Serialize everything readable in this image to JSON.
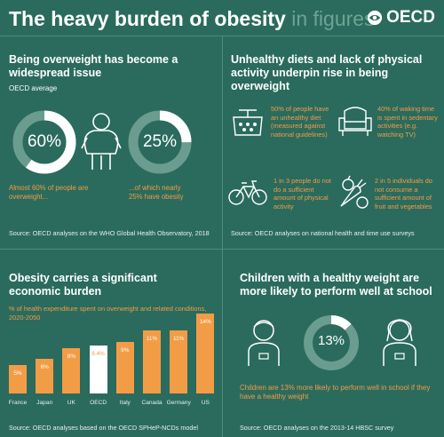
{
  "header": {
    "title_main": "The heavy burden of obesity",
    "title_muted": " in figures",
    "logo_text": "OECD"
  },
  "q1": {
    "heading": "Being overweight has become a widespread issue",
    "sub": "OECD average",
    "ring1_value": "60%",
    "ring1_fraction": 0.6,
    "ring2_value": "25%",
    "ring2_fraction": 0.25,
    "caption1": "Almost 60% of people are overweight...",
    "caption2": "...of which nearly 25% have obesity",
    "source": "Source: OECD analyses on the WHO Global Health Observatory, 2018"
  },
  "q2": {
    "heading": "Unhealthy diets and lack of physical activity underpin rise in being overweight",
    "items": [
      {
        "icon": "scale-food-icon",
        "text": "50% of people have an unhealthy diet (measured against national guidelines)"
      },
      {
        "icon": "armchair-icon",
        "text": "40% of waking time is spent in sedentary activities (e.g. watching TV)"
      },
      {
        "icon": "bicycle-icon",
        "text": "1 in 3 people do not do a sufficient amount of physical activity"
      },
      {
        "icon": "vegetables-icon",
        "text": "2 in 5 individuals do not consume a sufficient amount of fruit and vegetables"
      }
    ],
    "source": "Source: OECD analyses on national health and time use surveys"
  },
  "q3": {
    "heading": "Obesity carries a significant economic burden",
    "sub": "% of health expenditure spent on overweight and related conditions, 2020-2050",
    "source": "Source: OECD analyses based on the OECD SPHeP-NCDs model"
  },
  "q4": {
    "heading": "Children with a healthy weight are more likely to perform well at school",
    "ring_value": "13%",
    "ring_fraction": 0.13,
    "caption": "Children are 13% more likely to perform well in school if they have a healthy weight",
    "source": "Source: OECD analyses on the 2013-14 HBSC survey"
  },
  "chart_data": {
    "type": "bar",
    "categories": [
      "France",
      "Japan",
      "UK",
      "OECD",
      "Italy",
      "Canada",
      "Germany",
      "US"
    ],
    "values": [
      5,
      6,
      8,
      8.4,
      9,
      11,
      11,
      14
    ],
    "labels": [
      "5%",
      "6%",
      "8%",
      "8.4%",
      "9%",
      "11%",
      "11%",
      "14%"
    ],
    "highlight": "OECD",
    "colors": {
      "bar": "#f39c46",
      "highlight": "#ffffff"
    },
    "ylim": [
      0,
      14
    ]
  }
}
